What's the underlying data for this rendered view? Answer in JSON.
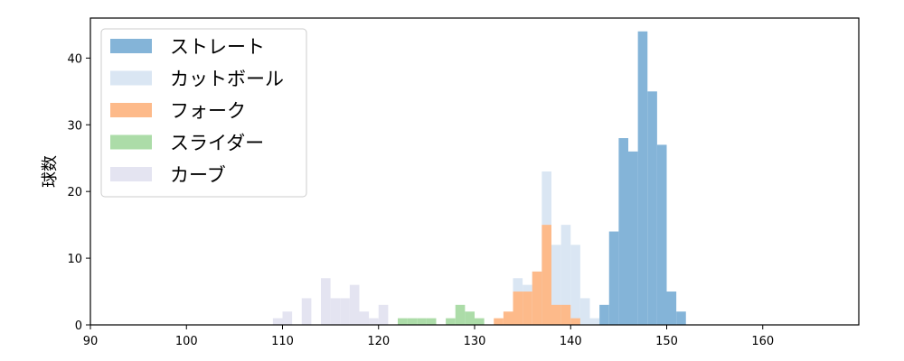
{
  "chart_data": {
    "type": "bar",
    "title": "",
    "xlabel": "",
    "ylabel": "球数",
    "xlim": [
      90,
      170
    ],
    "ylim": [
      0,
      46
    ],
    "xticks": [
      90,
      100,
      110,
      120,
      130,
      140,
      150,
      160
    ],
    "yticks": [
      0,
      10,
      20,
      30,
      40
    ],
    "grid": false,
    "legend_position": "top-left",
    "bin_width": 1,
    "series": [
      {
        "name": "カットボール",
        "color": "#dae6f3",
        "bins": [
          {
            "x": 134,
            "count": 7
          },
          {
            "x": 135,
            "count": 6
          },
          {
            "x": 136,
            "count": 8
          },
          {
            "x": 137,
            "count": 23
          },
          {
            "x": 138,
            "count": 12
          },
          {
            "x": 139,
            "count": 15
          },
          {
            "x": 140,
            "count": 12
          },
          {
            "x": 141,
            "count": 4
          },
          {
            "x": 142,
            "count": 1
          }
        ]
      },
      {
        "name": "カーブ",
        "color": "#e4e4f1",
        "bins": [
          {
            "x": 109,
            "count": 1
          },
          {
            "x": 110,
            "count": 2
          },
          {
            "x": 112,
            "count": 4
          },
          {
            "x": 114,
            "count": 7
          },
          {
            "x": 115,
            "count": 4
          },
          {
            "x": 116,
            "count": 4
          },
          {
            "x": 117,
            "count": 6
          },
          {
            "x": 118,
            "count": 2
          },
          {
            "x": 119,
            "count": 1
          },
          {
            "x": 120,
            "count": 3
          }
        ]
      },
      {
        "name": "スライダー",
        "color": "#acdca8",
        "bins": [
          {
            "x": 122,
            "count": 1
          },
          {
            "x": 123,
            "count": 1
          },
          {
            "x": 124,
            "count": 1
          },
          {
            "x": 125,
            "count": 1
          },
          {
            "x": 127,
            "count": 1
          },
          {
            "x": 128,
            "count": 3
          },
          {
            "x": 129,
            "count": 2
          },
          {
            "x": 130,
            "count": 1
          }
        ]
      },
      {
        "name": "フォーク",
        "color": "#fdba8a",
        "bins": [
          {
            "x": 132,
            "count": 1
          },
          {
            "x": 133,
            "count": 2
          },
          {
            "x": 134,
            "count": 5
          },
          {
            "x": 135,
            "count": 5
          },
          {
            "x": 136,
            "count": 8
          },
          {
            "x": 137,
            "count": 15
          },
          {
            "x": 138,
            "count": 3
          },
          {
            "x": 139,
            "count": 3
          },
          {
            "x": 140,
            "count": 1
          }
        ]
      },
      {
        "name": "ストレート",
        "color": "#84b4d8",
        "bins": [
          {
            "x": 143,
            "count": 3
          },
          {
            "x": 144,
            "count": 14
          },
          {
            "x": 145,
            "count": 28
          },
          {
            "x": 146,
            "count": 26
          },
          {
            "x": 147,
            "count": 44
          },
          {
            "x": 148,
            "count": 35
          },
          {
            "x": 149,
            "count": 27
          },
          {
            "x": 150,
            "count": 5
          },
          {
            "x": 151,
            "count": 2
          }
        ]
      }
    ],
    "legend": [
      {
        "name": "ストレート",
        "color": "#84b4d8"
      },
      {
        "name": "カットボール",
        "color": "#dae6f3"
      },
      {
        "name": "フォーク",
        "color": "#fdba8a"
      },
      {
        "name": "スライダー",
        "color": "#acdca8"
      },
      {
        "name": "カーブ",
        "color": "#e4e4f1"
      }
    ]
  }
}
